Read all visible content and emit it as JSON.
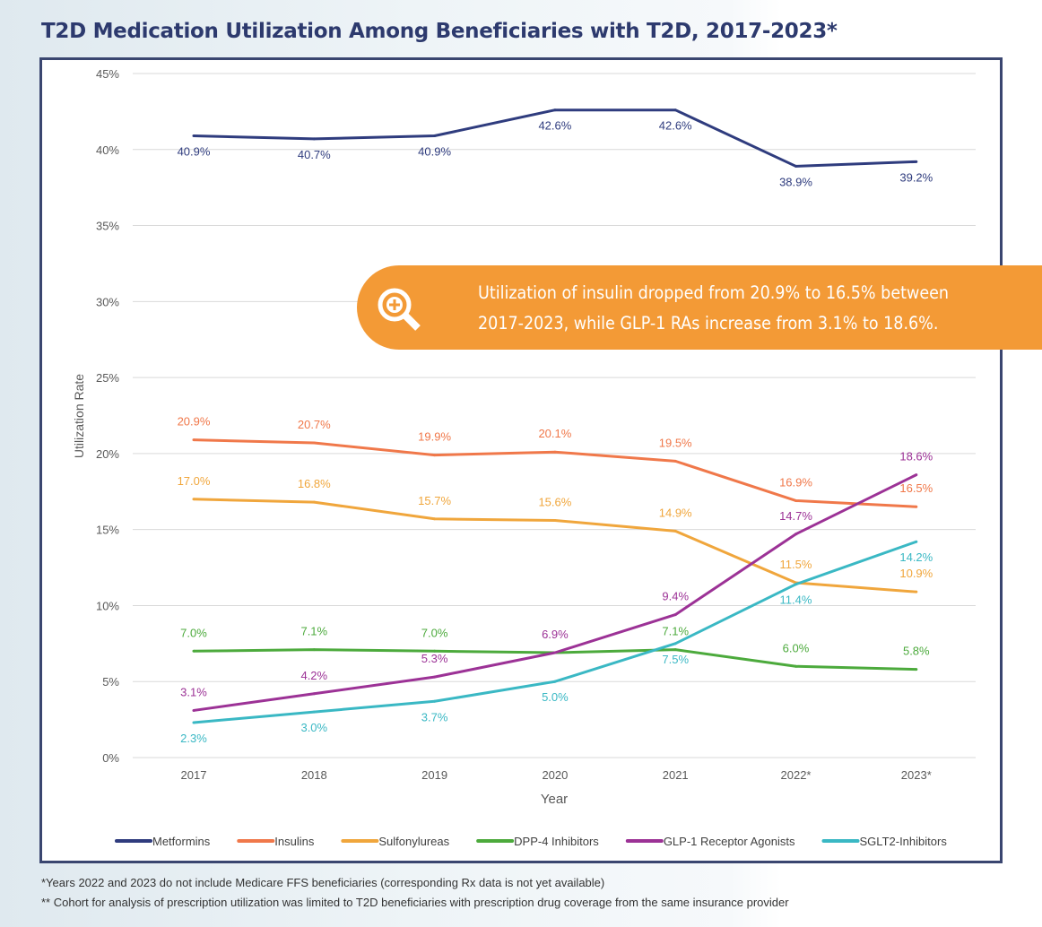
{
  "title": "T2D Medication Utilization Among Beneficiaries with T2D, 2017-2023*",
  "callout": {
    "icon": "magnifier-plus-icon",
    "line1": "Utilization of insulin dropped from 20.9% to 16.5% between",
    "line2": "2017-2023, while GLP-1 RAs increase from 3.1% to 18.6%."
  },
  "footnotes": [
    "*Years 2022 and 2023 do not include Medicare FFS beneficiaries (corresponding Rx data is not yet available)",
    "** Cohort for analysis of prescription utilization was limited to T2D beneficiaries with prescription drug coverage from the same insurance provider"
  ],
  "chart_data": {
    "type": "line",
    "xlabel": "Year",
    "ylabel": "Utilization Rate",
    "categories": [
      "2017",
      "2018",
      "2019",
      "2020",
      "2021",
      "2022*",
      "2023*"
    ],
    "ylim": [
      0,
      45
    ],
    "yticks": [
      "0%",
      "5%",
      "10%",
      "15%",
      "20%",
      "25%",
      "30%",
      "35%",
      "40%",
      "45%"
    ],
    "grid": true,
    "legend": "bottom",
    "series": [
      {
        "name": "Metformins",
        "color": "#2f3c7e",
        "values": [
          40.9,
          40.7,
          40.9,
          42.6,
          42.6,
          38.9,
          39.2
        ],
        "labels": [
          "40.9%",
          "40.7%",
          "40.9%",
          "42.6%",
          "42.6%",
          "38.9%",
          "39.2%"
        ]
      },
      {
        "name": "Insulins",
        "color": "#f0784a",
        "values": [
          20.9,
          20.7,
          19.9,
          20.1,
          19.5,
          16.9,
          16.5
        ],
        "labels": [
          "20.9%",
          "20.7%",
          "19.9%",
          "20.1%",
          "19.5%",
          "16.9%",
          "16.5%"
        ]
      },
      {
        "name": "Sulfonylureas",
        "color": "#f0a63c",
        "values": [
          17.0,
          16.8,
          15.7,
          15.6,
          14.9,
          11.5,
          10.9
        ],
        "labels": [
          "17.0%",
          "16.8%",
          "15.7%",
          "15.6%",
          "14.9%",
          "11.5%",
          "10.9%"
        ]
      },
      {
        "name": "DPP-4 Inhibitors",
        "color": "#4caa3c",
        "values": [
          7.0,
          7.1,
          7.0,
          6.9,
          7.1,
          6.0,
          5.8
        ],
        "labels": [
          "7.0%",
          "7.1%",
          "7.0%",
          "",
          "7.1%",
          "6.0%",
          "5.8%"
        ]
      },
      {
        "name": "GLP-1 Receptor Agonists",
        "color": "#9c3296",
        "values": [
          3.1,
          4.2,
          5.3,
          6.9,
          9.4,
          14.7,
          18.6
        ],
        "labels": [
          "3.1%",
          "4.2%",
          "5.3%",
          "6.9%",
          "9.4%",
          "14.7%",
          "18.6%"
        ]
      },
      {
        "name": "SGLT2-Inhibitors",
        "color": "#3ab8c4",
        "values": [
          2.3,
          3.0,
          3.7,
          5.0,
          7.5,
          11.4,
          14.2
        ],
        "labels": [
          "2.3%",
          "3.0%",
          "3.7%",
          "5.0%",
          "7.5%",
          "11.4%",
          "14.2%"
        ]
      }
    ]
  }
}
